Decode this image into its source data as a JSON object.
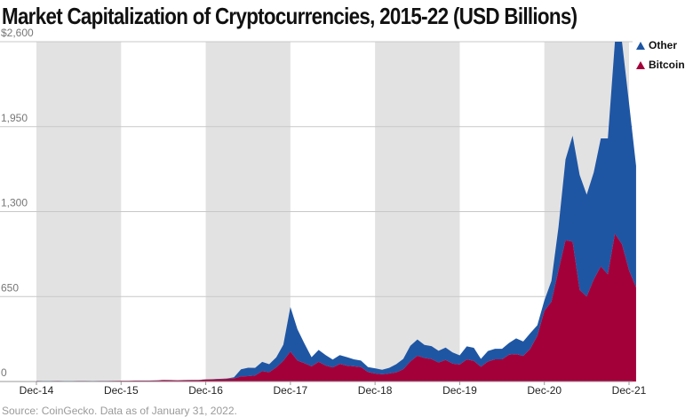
{
  "title": "Market Capitalization of Cryptocurrencies, 2015-22 (USD Billions)",
  "source": "Source: CoinGecko. Data as of January 31, 2022.",
  "colors": {
    "other": "#1f56a4",
    "bitcoin": "#a3003a",
    "band": "#e2e2e2",
    "grid": "#c8c8c8"
  },
  "legend": [
    {
      "name": "Other",
      "color": "#1f56a4"
    },
    {
      "name": "Bitcoin",
      "color": "#a3003a"
    }
  ],
  "chart_data": {
    "type": "area",
    "stacked": true,
    "title": "Market Capitalization of Cryptocurrencies, 2015-22 (USD Billions)",
    "xlabel": "",
    "ylabel": "",
    "ylim": [
      0,
      2600
    ],
    "yticks": [
      0,
      650,
      1300,
      1950,
      2600
    ],
    "ytick_labels": [
      "0",
      "650",
      "1,300",
      "1,950",
      "$2,600"
    ],
    "xticks": [
      "Dec-14",
      "Dec-15",
      "Dec-16",
      "Dec-17",
      "Dec-18",
      "Dec-19",
      "Dec-20",
      "Dec-21"
    ],
    "grid": true,
    "legend_position": "top-right",
    "shaded_years": [
      2015,
      2017,
      2019,
      2021
    ],
    "x": [
      "2014-12",
      "2015-01",
      "2015-02",
      "2015-03",
      "2015-04",
      "2015-05",
      "2015-06",
      "2015-07",
      "2015-08",
      "2015-09",
      "2015-10",
      "2015-11",
      "2015-12",
      "2016-01",
      "2016-02",
      "2016-03",
      "2016-04",
      "2016-05",
      "2016-06",
      "2016-07",
      "2016-08",
      "2016-09",
      "2016-10",
      "2016-11",
      "2016-12",
      "2017-01",
      "2017-02",
      "2017-03",
      "2017-04",
      "2017-05",
      "2017-06",
      "2017-07",
      "2017-08",
      "2017-09",
      "2017-10",
      "2017-11",
      "2017-12",
      "2018-01",
      "2018-02",
      "2018-03",
      "2018-04",
      "2018-05",
      "2018-06",
      "2018-07",
      "2018-08",
      "2018-09",
      "2018-10",
      "2018-11",
      "2018-12",
      "2019-01",
      "2019-02",
      "2019-03",
      "2019-04",
      "2019-05",
      "2019-06",
      "2019-07",
      "2019-08",
      "2019-09",
      "2019-10",
      "2019-11",
      "2019-12",
      "2020-01",
      "2020-02",
      "2020-03",
      "2020-04",
      "2020-05",
      "2020-06",
      "2020-07",
      "2020-08",
      "2020-09",
      "2020-10",
      "2020-11",
      "2020-12",
      "2021-01",
      "2021-02",
      "2021-03",
      "2021-04",
      "2021-05",
      "2021-06",
      "2021-07",
      "2021-08",
      "2021-09",
      "2021-10",
      "2021-11",
      "2021-12",
      "2022-01"
    ],
    "series": [
      {
        "name": "Bitcoin",
        "values": [
          4,
          3,
          3,
          4,
          3,
          3,
          4,
          4,
          3,
          4,
          4,
          5,
          6,
          6,
          7,
          7,
          7,
          8,
          11,
          10,
          9,
          10,
          11,
          11,
          15,
          16,
          18,
          20,
          23,
          38,
          41,
          46,
          79,
          71,
          108,
          158,
          229,
          160,
          140,
          116,
          150,
          122,
          108,
          134,
          121,
          116,
          110,
          72,
          61,
          55,
          61,
          70,
          93,
          153,
          197,
          180,
          171,
          145,
          165,
          137,
          130,
          169,
          158,
          113,
          153,
          170,
          170,
          205,
          210,
          196,
          250,
          350,
          540,
          610,
          850,
          1080,
          1070,
          700,
          650,
          780,
          880,
          820,
          1130,
          1050,
          850,
          720
        ]
      },
      {
        "name": "Other",
        "values": [
          1,
          1,
          1,
          1,
          1,
          1,
          1,
          1,
          1,
          1,
          1,
          1,
          1,
          1,
          1,
          1,
          1,
          1,
          1,
          1,
          1,
          1,
          1,
          1,
          2,
          2,
          2,
          3,
          9,
          55,
          64,
          58,
          71,
          61,
          77,
          124,
          341,
          240,
          149,
          70,
          92,
          80,
          60,
          68,
          66,
          54,
          50,
          38,
          40,
          35,
          43,
          62,
          80,
          120,
          125,
          100,
          100,
          90,
          95,
          85,
          70,
          100,
          100,
          60,
          80,
          80,
          80,
          90,
          120,
          110,
          120,
          80,
          80,
          160,
          330,
          620,
          810,
          880,
          780,
          820,
          980,
          1040,
          1470,
          1550,
          1280,
          930
        ]
      }
    ]
  }
}
